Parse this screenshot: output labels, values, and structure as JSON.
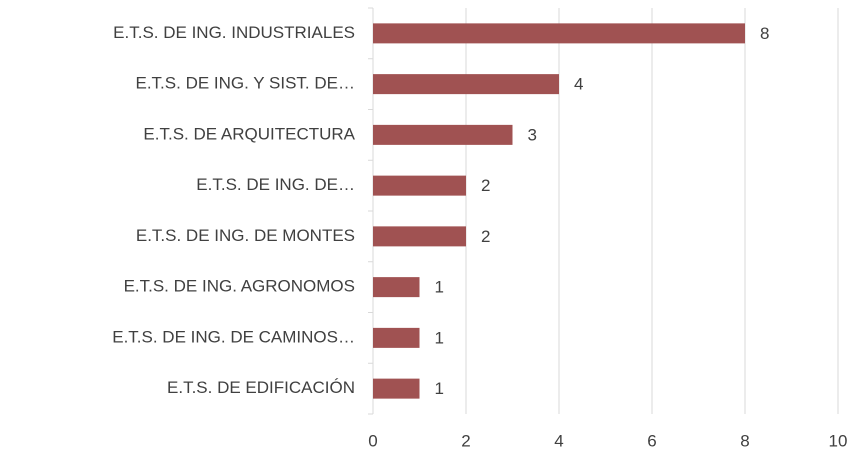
{
  "chart_data": {
    "type": "bar",
    "orientation": "horizontal",
    "categories": [
      "E.T.S. DE ING. INDUSTRIALES",
      "E.T.S. DE ING. Y SIST. DE…",
      "E.T.S. DE ARQUITECTURA",
      "E.T.S. DE ING. DE…",
      "E.T.S. DE ING. DE MONTES",
      "E.T.S. DE ING. AGRONOMOS",
      "E.T.S. DE ING. DE CAMINOS…",
      "E.T.S. DE EDIFICACIÓN"
    ],
    "values": [
      8,
      4,
      3,
      2,
      2,
      1,
      1,
      1
    ],
    "color": "#a05252",
    "xlim": [
      0,
      10
    ],
    "xticks": [
      0,
      2,
      4,
      6,
      8,
      10
    ],
    "grid": true
  }
}
